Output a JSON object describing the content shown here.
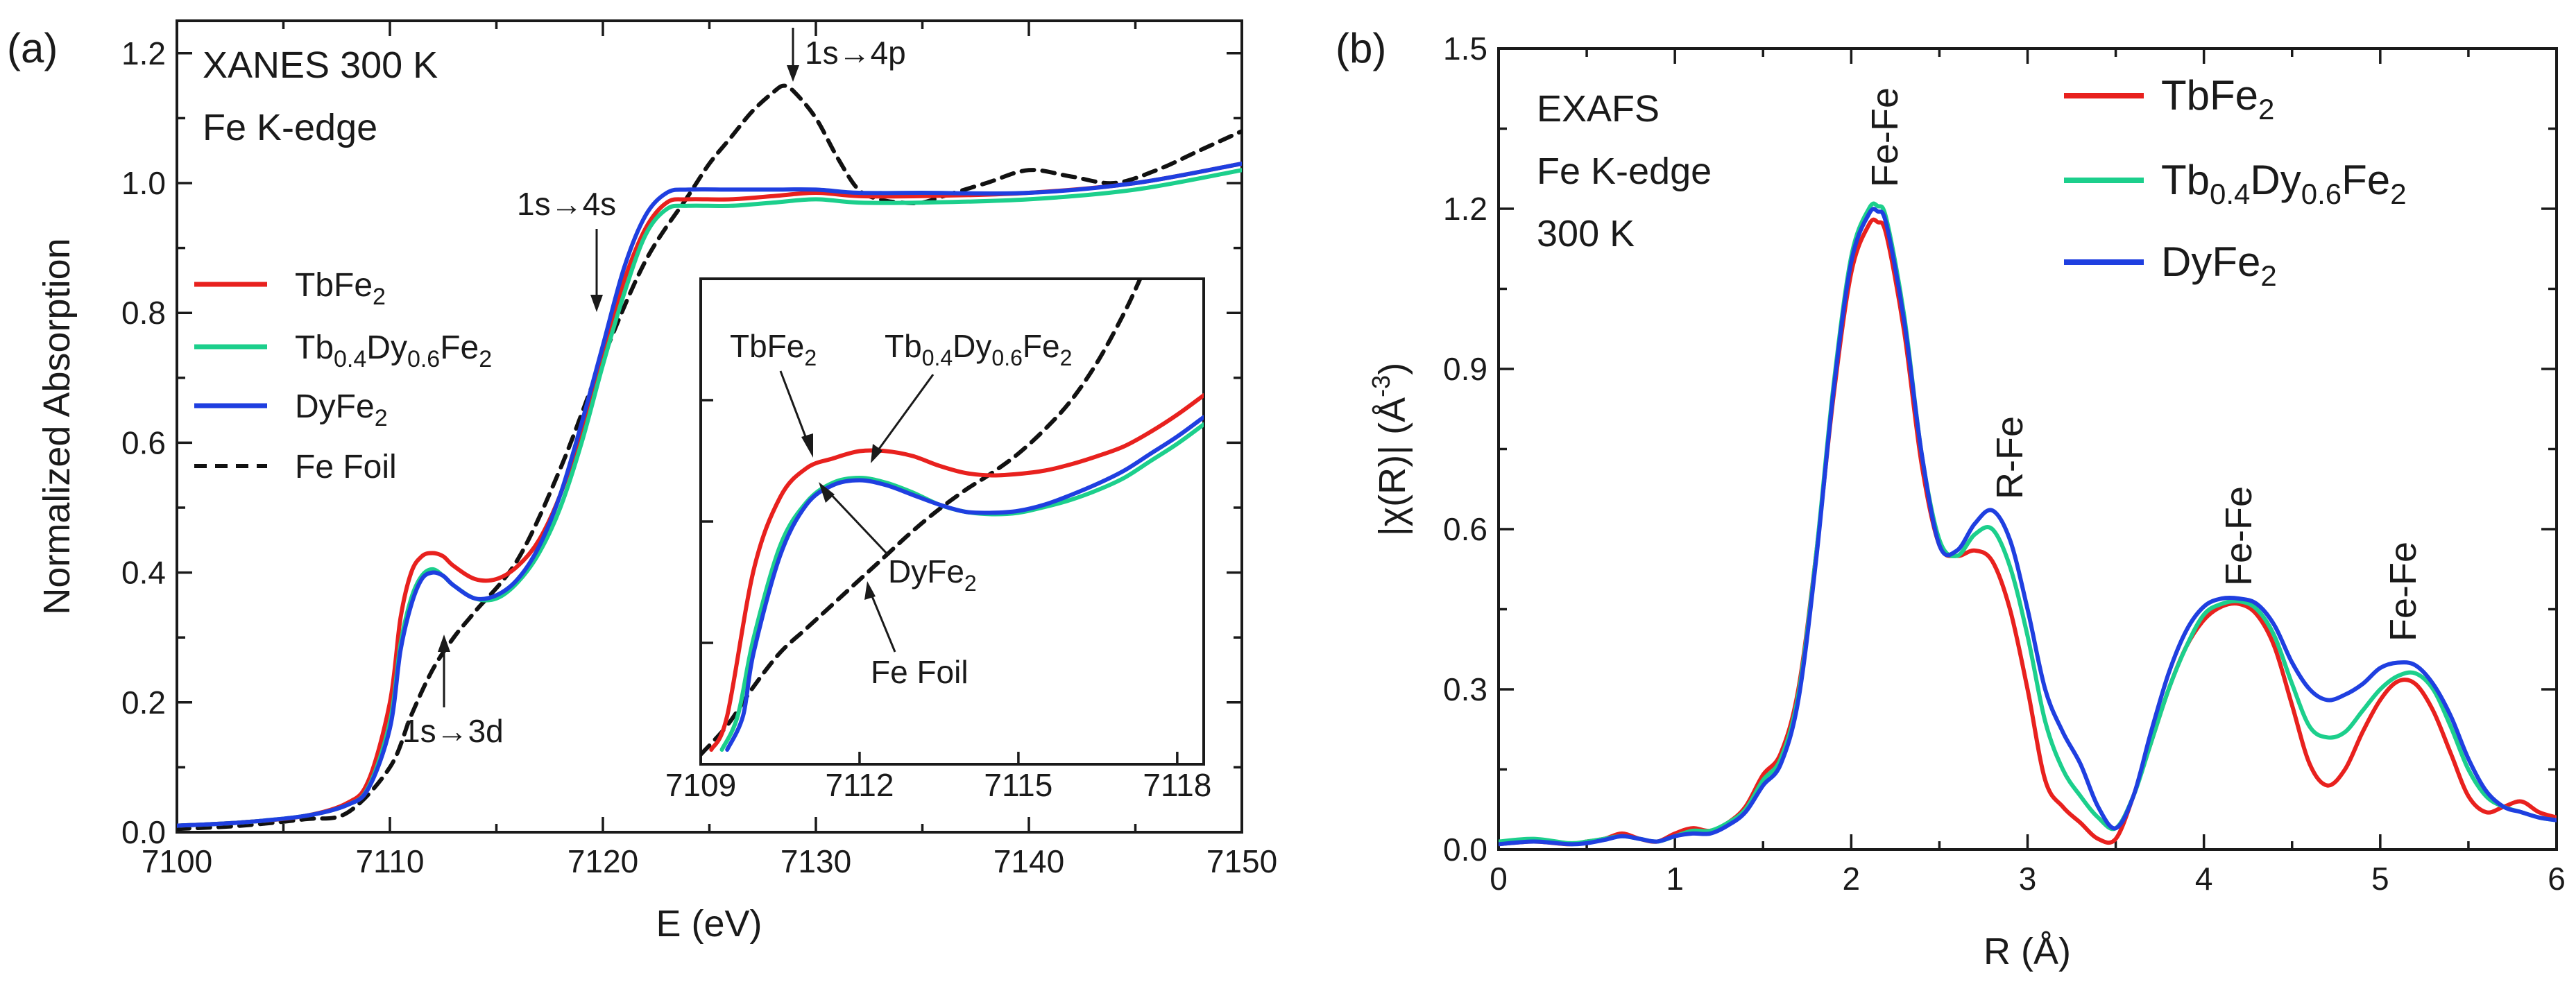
{
  "colors": {
    "TbFe2": "#e8211e",
    "Tb04Dy06Fe2": "#1ccf8c",
    "DyFe2": "#1f3fe0",
    "FeFoil": "#111111",
    "axis": "#1a1a1a"
  },
  "chart_data": [
    {
      "panel": "(a)",
      "type": "line",
      "title_lines": [
        "XANES  300 K",
        "Fe K-edge"
      ],
      "xlabel": "E (eV)",
      "ylabel": "Normalized Absorption",
      "xlim": [
        7100,
        7150
      ],
      "ylim": [
        0.0,
        1.25
      ],
      "xticks": [
        7100,
        7110,
        7120,
        7130,
        7140,
        7150
      ],
      "yticks": [
        0.0,
        0.2,
        0.4,
        0.6,
        0.8,
        1.0,
        1.2
      ],
      "xtick_labels": [
        "7100",
        "7110",
        "7120",
        "7130",
        "7140",
        "7150"
      ],
      "ytick_labels": [
        "0.0",
        "0.2",
        "0.4",
        "0.6",
        "0.8",
        "1.0",
        "1.2"
      ],
      "legend": {
        "placement": "middle-left",
        "entries": [
          {
            "name": "TbFe",
            "sub": "2",
            "key": "TbFe2",
            "style": "solid"
          },
          {
            "name": "Tb0.4Dy0.6Fe2",
            "key": "Tb04Dy06Fe2",
            "style": "solid"
          },
          {
            "name": "DyFe",
            "sub": "2",
            "key": "DyFe2",
            "style": "solid"
          },
          {
            "name": "Fe Foil",
            "key": "FeFoil",
            "style": "dashed"
          }
        ]
      },
      "annotations": [
        {
          "text": "1s→4p"
        },
        {
          "text": "1s→4s"
        },
        {
          "text": "1s→3d"
        }
      ],
      "series": [
        {
          "name": "TbFe2",
          "key": "TbFe2",
          "x": [
            7100,
            7103,
            7106,
            7108,
            7109,
            7110,
            7110.5,
            7111,
            7111.5,
            7112,
            7112.5,
            7113,
            7114,
            7115,
            7116,
            7117,
            7118,
            7119,
            7120,
            7121,
            7122,
            7123,
            7124,
            7126,
            7128,
            7130,
            7132,
            7135,
            7140,
            7145,
            7150
          ],
          "y": [
            0.01,
            0.015,
            0.025,
            0.045,
            0.08,
            0.2,
            0.33,
            0.4,
            0.425,
            0.43,
            0.425,
            0.41,
            0.39,
            0.39,
            0.41,
            0.45,
            0.52,
            0.62,
            0.74,
            0.85,
            0.93,
            0.97,
            0.975,
            0.975,
            0.98,
            0.985,
            0.98,
            0.98,
            0.985,
            1.0,
            1.03
          ]
        },
        {
          "name": "Tb0.4Dy0.6Fe2",
          "key": "Tb04Dy06Fe2",
          "x": [
            7100,
            7103,
            7106,
            7108,
            7109,
            7110,
            7110.5,
            7111,
            7111.5,
            7112,
            7112.5,
            7113,
            7114,
            7115,
            7116,
            7117,
            7118,
            7119,
            7120,
            7121,
            7122,
            7123,
            7124,
            7126,
            7128,
            7130,
            7132,
            7135,
            7140,
            7145,
            7150
          ],
          "y": [
            0.01,
            0.015,
            0.025,
            0.042,
            0.07,
            0.17,
            0.29,
            0.36,
            0.395,
            0.405,
            0.395,
            0.38,
            0.36,
            0.36,
            0.385,
            0.43,
            0.5,
            0.6,
            0.72,
            0.83,
            0.92,
            0.96,
            0.965,
            0.965,
            0.97,
            0.975,
            0.97,
            0.97,
            0.975,
            0.99,
            1.02
          ]
        },
        {
          "name": "DyFe2",
          "key": "DyFe2",
          "x": [
            7100,
            7103,
            7106,
            7108,
            7109,
            7110,
            7110.5,
            7111,
            7111.5,
            7112,
            7112.5,
            7113,
            7114,
            7115,
            7116,
            7117,
            7118,
            7119,
            7120,
            7121,
            7122,
            7123,
            7124,
            7126,
            7128,
            7130,
            7132,
            7135,
            7140,
            7145,
            7150
          ],
          "y": [
            0.01,
            0.015,
            0.025,
            0.042,
            0.068,
            0.16,
            0.28,
            0.35,
            0.39,
            0.4,
            0.395,
            0.38,
            0.36,
            0.365,
            0.39,
            0.44,
            0.52,
            0.63,
            0.75,
            0.87,
            0.95,
            0.985,
            0.99,
            0.99,
            0.99,
            0.99,
            0.985,
            0.985,
            0.985,
            1.0,
            1.03
          ]
        },
        {
          "name": "Fe Foil",
          "key": "FeFoil",
          "x": [
            7100,
            7103,
            7106,
            7108,
            7110,
            7111,
            7112,
            7113,
            7114,
            7116,
            7118,
            7120,
            7122,
            7124,
            7125,
            7126,
            7127,
            7128,
            7128.5,
            7129,
            7130,
            7131,
            7132,
            7133,
            7134,
            7135,
            7136,
            7138,
            7140,
            7142,
            7144,
            7146,
            7148,
            7150
          ],
          "y": [
            0.005,
            0.01,
            0.02,
            0.03,
            0.1,
            0.18,
            0.25,
            0.3,
            0.34,
            0.42,
            0.56,
            0.73,
            0.88,
            0.98,
            1.03,
            1.07,
            1.11,
            1.14,
            1.15,
            1.14,
            1.1,
            1.04,
            0.99,
            0.975,
            0.97,
            0.97,
            0.98,
            1.0,
            1.02,
            1.01,
            1.0,
            1.02,
            1.05,
            1.08
          ]
        }
      ],
      "inset": {
        "xlim": [
          7109,
          7118.5
        ],
        "ylim": [
          0.0,
          1.0
        ],
        "xticks": [
          7109,
          7112,
          7115,
          7118
        ],
        "xtick_labels": [
          "7109",
          "7112",
          "7115",
          "7118"
        ],
        "labels": [
          {
            "name": "TbFe",
            "sub": "2"
          },
          {
            "name": "Tb0.4Dy0.6Fe2"
          },
          {
            "name": "DyFe",
            "sub": "2"
          },
          {
            "name": "Fe Foil"
          }
        ],
        "series": [
          {
            "key": "TbFe2",
            "x": [
              7109.2,
              7109.5,
              7110,
              7110.5,
              7111,
              7111.5,
              7112,
              7112.5,
              7113,
              7113.5,
              7114,
              7114.5,
              7115,
              7115.5,
              7116,
              7116.5,
              7117,
              7117.5,
              7118,
              7118.5
            ],
            "y": [
              0.03,
              0.1,
              0.4,
              0.55,
              0.61,
              0.63,
              0.645,
              0.645,
              0.635,
              0.615,
              0.6,
              0.595,
              0.598,
              0.605,
              0.618,
              0.635,
              0.655,
              0.685,
              0.72,
              0.76
            ]
          },
          {
            "key": "Tb04Dy06Fe2",
            "x": [
              7109.4,
              7109.7,
              7110,
              7110.5,
              7111,
              7111.5,
              7112,
              7112.5,
              7113,
              7113.5,
              7114,
              7114.5,
              7115,
              7115.5,
              7116,
              7116.5,
              7117,
              7117.5,
              7118,
              7118.5
            ],
            "y": [
              0.03,
              0.1,
              0.26,
              0.45,
              0.54,
              0.58,
              0.59,
              0.58,
              0.56,
              0.535,
              0.52,
              0.515,
              0.518,
              0.53,
              0.545,
              0.565,
              0.59,
              0.625,
              0.66,
              0.7
            ]
          },
          {
            "key": "DyFe2",
            "x": [
              7109.5,
              7109.8,
              7110,
              7110.5,
              7111,
              7111.5,
              7112,
              7112.5,
              7113,
              7113.5,
              7114,
              7114.5,
              7115,
              7115.5,
              7116,
              7116.5,
              7117,
              7117.5,
              7118,
              7118.5
            ],
            "y": [
              0.03,
              0.1,
              0.23,
              0.43,
              0.535,
              0.575,
              0.585,
              0.575,
              0.555,
              0.535,
              0.52,
              0.518,
              0.522,
              0.535,
              0.555,
              0.578,
              0.605,
              0.64,
              0.675,
              0.715
            ]
          },
          {
            "key": "FeFoil",
            "x": [
              7109,
              7109.5,
              7110,
              7110.5,
              7111,
              7111.5,
              7112,
              7112.5,
              7113,
              7113.5,
              7114,
              7114.5,
              7115,
              7115.5,
              7116,
              7116.5,
              7117,
              7117.3
            ],
            "y": [
              0.02,
              0.08,
              0.16,
              0.23,
              0.28,
              0.33,
              0.38,
              0.43,
              0.48,
              0.525,
              0.565,
              0.6,
              0.64,
              0.69,
              0.75,
              0.83,
              0.93,
              1.0
            ]
          }
        ]
      }
    },
    {
      "panel": "(b)",
      "type": "line",
      "title_lines": [
        "EXAFS",
        "Fe K-edge",
        "300 K"
      ],
      "xlabel": "R (Å)",
      "ylabel": "|χ(R)| (Å-3)",
      "xlim": [
        0,
        6
      ],
      "ylim": [
        0.0,
        1.5
      ],
      "xticks": [
        0,
        1,
        2,
        3,
        4,
        5,
        6
      ],
      "yticks": [
        0.0,
        0.3,
        0.6,
        0.9,
        1.2,
        1.5
      ],
      "xtick_labels": [
        "0",
        "1",
        "2",
        "3",
        "4",
        "5",
        "6"
      ],
      "ytick_labels": [
        "0.0",
        "0.3",
        "0.6",
        "0.9",
        "1.2",
        "1.5"
      ],
      "legend": {
        "placement": "top-right",
        "entries": [
          {
            "name": "TbFe",
            "sub": "2",
            "key": "TbFe2"
          },
          {
            "name": "Tb0.4Dy0.6Fe2",
            "key": "Tb04Dy06Fe2"
          },
          {
            "name": "DyFe",
            "sub": "2",
            "key": "DyFe2"
          }
        ]
      },
      "peak_labels": [
        "Fe-Fe",
        "R-Fe",
        "Fe-Fe",
        "Fe-Fe"
      ],
      "series": [
        {
          "name": "TbFe2",
          "key": "TbFe2",
          "x": [
            0,
            0.2,
            0.4,
            0.5,
            0.6,
            0.7,
            0.8,
            0.9,
            1.0,
            1.1,
            1.2,
            1.3,
            1.4,
            1.5,
            1.6,
            1.7,
            1.8,
            1.9,
            2.0,
            2.1,
            2.15,
            2.2,
            2.3,
            2.4,
            2.5,
            2.6,
            2.7,
            2.8,
            2.9,
            3.0,
            3.1,
            3.2,
            3.3,
            3.4,
            3.5,
            3.6,
            3.7,
            3.8,
            3.9,
            4.0,
            4.1,
            4.2,
            4.3,
            4.4,
            4.5,
            4.6,
            4.7,
            4.8,
            4.9,
            5.0,
            5.1,
            5.2,
            5.3,
            5.4,
            5.5,
            5.6,
            5.7,
            5.8,
            5.9,
            6.0
          ],
          "y": [
            0.01,
            0.015,
            0.01,
            0.015,
            0.02,
            0.03,
            0.02,
            0.015,
            0.03,
            0.04,
            0.035,
            0.05,
            0.08,
            0.14,
            0.18,
            0.3,
            0.55,
            0.85,
            1.08,
            1.17,
            1.175,
            1.15,
            0.97,
            0.72,
            0.57,
            0.55,
            0.56,
            0.54,
            0.45,
            0.3,
            0.13,
            0.08,
            0.05,
            0.02,
            0.02,
            0.1,
            0.2,
            0.3,
            0.38,
            0.43,
            0.455,
            0.46,
            0.44,
            0.38,
            0.27,
            0.16,
            0.12,
            0.15,
            0.22,
            0.28,
            0.315,
            0.31,
            0.26,
            0.18,
            0.1,
            0.07,
            0.08,
            0.09,
            0.07,
            0.06
          ]
        },
        {
          "name": "Tb0.4Dy0.6Fe2",
          "key": "Tb04Dy06Fe2",
          "x": [
            0,
            0.2,
            0.4,
            0.5,
            0.6,
            0.7,
            0.8,
            0.9,
            1.0,
            1.1,
            1.2,
            1.3,
            1.4,
            1.5,
            1.6,
            1.7,
            1.8,
            1.9,
            2.0,
            2.1,
            2.15,
            2.2,
            2.3,
            2.4,
            2.5,
            2.6,
            2.7,
            2.8,
            2.9,
            3.0,
            3.1,
            3.2,
            3.3,
            3.4,
            3.5,
            3.6,
            3.7,
            3.8,
            3.9,
            4.0,
            4.1,
            4.2,
            4.3,
            4.4,
            4.5,
            4.6,
            4.7,
            4.8,
            4.9,
            5.0,
            5.1,
            5.2,
            5.3,
            5.4,
            5.5,
            5.6,
            5.7,
            5.8,
            5.9,
            6.0
          ],
          "y": [
            0.015,
            0.02,
            0.012,
            0.015,
            0.02,
            0.025,
            0.02,
            0.015,
            0.025,
            0.035,
            0.035,
            0.05,
            0.075,
            0.13,
            0.17,
            0.29,
            0.55,
            0.87,
            1.11,
            1.2,
            1.205,
            1.18,
            1.0,
            0.74,
            0.58,
            0.55,
            0.59,
            0.6,
            0.53,
            0.4,
            0.24,
            0.15,
            0.1,
            0.06,
            0.04,
            0.1,
            0.2,
            0.3,
            0.38,
            0.44,
            0.46,
            0.465,
            0.45,
            0.4,
            0.31,
            0.23,
            0.21,
            0.22,
            0.26,
            0.3,
            0.325,
            0.33,
            0.3,
            0.23,
            0.15,
            0.1,
            0.08,
            0.07,
            0.06,
            0.055
          ]
        },
        {
          "name": "DyFe2",
          "key": "DyFe2",
          "x": [
            0,
            0.2,
            0.4,
            0.5,
            0.6,
            0.7,
            0.8,
            0.9,
            1.0,
            1.1,
            1.2,
            1.3,
            1.4,
            1.5,
            1.6,
            1.7,
            1.8,
            1.9,
            2.0,
            2.1,
            2.15,
            2.2,
            2.3,
            2.4,
            2.5,
            2.6,
            2.7,
            2.8,
            2.9,
            3.0,
            3.1,
            3.2,
            3.3,
            3.4,
            3.5,
            3.6,
            3.7,
            3.8,
            3.9,
            4.0,
            4.1,
            4.2,
            4.3,
            4.4,
            4.5,
            4.6,
            4.7,
            4.8,
            4.9,
            5.0,
            5.1,
            5.2,
            5.3,
            5.4,
            5.5,
            5.6,
            5.7,
            5.8,
            5.9,
            6.0
          ],
          "y": [
            0.01,
            0.015,
            0.01,
            0.012,
            0.018,
            0.025,
            0.02,
            0.015,
            0.025,
            0.03,
            0.03,
            0.045,
            0.07,
            0.12,
            0.16,
            0.28,
            0.54,
            0.86,
            1.1,
            1.19,
            1.195,
            1.17,
            0.99,
            0.74,
            0.57,
            0.56,
            0.61,
            0.635,
            0.58,
            0.45,
            0.3,
            0.22,
            0.16,
            0.08,
            0.04,
            0.1,
            0.22,
            0.33,
            0.41,
            0.455,
            0.47,
            0.47,
            0.46,
            0.42,
            0.35,
            0.3,
            0.28,
            0.29,
            0.31,
            0.34,
            0.35,
            0.345,
            0.31,
            0.25,
            0.17,
            0.11,
            0.08,
            0.07,
            0.06,
            0.055
          ]
        }
      ]
    }
  ]
}
